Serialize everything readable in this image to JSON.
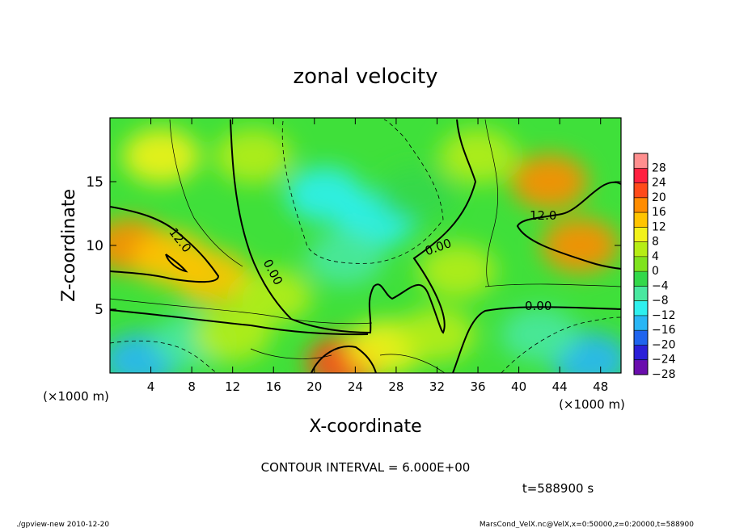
{
  "chart_data": {
    "type": "heatmap",
    "title": "zonal velocity",
    "xlabel": "X-coordinate",
    "ylabel": "Z-coordinate",
    "x_unit": "(×1000 m)",
    "y_unit": "(×1000 m)",
    "xlim": [
      0,
      50
    ],
    "ylim": [
      0,
      20
    ],
    "x_ticks": [
      "4",
      "8",
      "12",
      "16",
      "20",
      "24",
      "28",
      "32",
      "36",
      "40",
      "44",
      "48"
    ],
    "y_ticks": [
      "5",
      "10",
      "15"
    ],
    "colorbar": {
      "tick_labels": [
        "28",
        "24",
        "20",
        "16",
        "12",
        "8",
        "4",
        "0",
        "−4",
        "−8",
        "−12",
        "−16",
        "−20",
        "−24",
        "−28"
      ],
      "range": [
        -30,
        30
      ],
      "colors": [
        "#6a0dad",
        "#2a1fd8",
        "#1f64ee",
        "#29b6f5",
        "#2ef0ee",
        "#49e8a0",
        "#33d84a",
        "#7fe31e",
        "#b6ed14",
        "#f2f21a",
        "#ffc400",
        "#ff8c00",
        "#ff4a1a",
        "#ff2040",
        "#ff8f8f"
      ]
    },
    "contour_interval_text": "CONTOUR INTERVAL = 6.000E+00",
    "contour_labels": [
      "12.0",
      "0.00",
      "0.00",
      "12.0",
      "0.00"
    ],
    "field_points": [
      {
        "x": 2,
        "z": 10,
        "u": 17
      },
      {
        "x": 6,
        "z": 9,
        "u": 12
      },
      {
        "x": 10,
        "z": 7.5,
        "u": 10
      },
      {
        "x": 46,
        "z": 10,
        "u": 16
      },
      {
        "x": 43,
        "z": 15,
        "u": 15
      },
      {
        "x": 23,
        "z": 0.8,
        "u": 18
      },
      {
        "x": 27,
        "z": 2,
        "u": 6
      },
      {
        "x": 21,
        "z": 14,
        "u": -11
      },
      {
        "x": 26,
        "z": 12,
        "u": -12
      },
      {
        "x": 23,
        "z": 9,
        "u": -9
      },
      {
        "x": 3,
        "z": 1,
        "u": -16
      },
      {
        "x": 8,
        "z": 2.5,
        "u": -9
      },
      {
        "x": 47,
        "z": 1,
        "u": -15
      },
      {
        "x": 42,
        "z": 3,
        "u": -8
      },
      {
        "x": 5,
        "z": 17,
        "u": 6
      },
      {
        "x": 14,
        "z": 17,
        "u": 2
      },
      {
        "x": 36,
        "z": 17,
        "u": 3
      },
      {
        "x": 34,
        "z": 8,
        "u": 3
      },
      {
        "x": 16,
        "z": 6,
        "u": 4
      },
      {
        "x": 32,
        "z": 3,
        "u": 2
      },
      {
        "x": 12,
        "z": 3,
        "u": 3
      },
      {
        "x": 30,
        "z": 14,
        "u": -5
      }
    ]
  },
  "footer": {
    "time_label": "t=588900 s",
    "left_note": "./gpview-new  2010-12-20",
    "right_note": "MarsCond_VelX.nc@VelX,x=0:50000,z=0:20000,t=588900"
  }
}
